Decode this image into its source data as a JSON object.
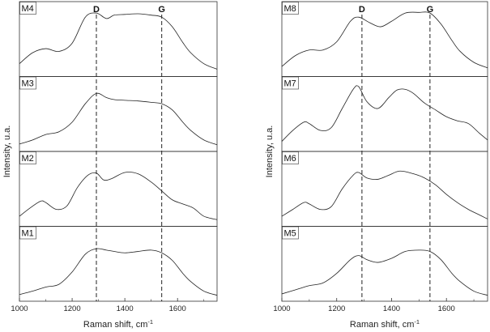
{
  "chart_data": [
    {
      "type": "line",
      "ylabel": "Intensity, u.a.",
      "xlabel": "Raman shift, cm",
      "xlabel_sup": "-1",
      "xlim": [
        1000,
        1750
      ],
      "xticks": [
        1000,
        1200,
        1400,
        1600
      ],
      "peak_lines": [
        {
          "label": "D",
          "x": 1292
        },
        {
          "label": "G",
          "x": 1540
        }
      ],
      "panels": [
        {
          "label": "M4",
          "x": [
            1000,
            1050,
            1100,
            1150,
            1200,
            1250,
            1292,
            1330,
            1360,
            1400,
            1450,
            1500,
            1540,
            1580,
            1620,
            1650,
            1700,
            1750
          ],
          "y": [
            0.14,
            0.3,
            0.36,
            0.32,
            0.44,
            0.82,
            0.88,
            0.8,
            0.85,
            0.86,
            0.87,
            0.85,
            0.82,
            0.68,
            0.45,
            0.3,
            0.14,
            0.06
          ]
        },
        {
          "label": "M3",
          "x": [
            1000,
            1050,
            1100,
            1150,
            1200,
            1250,
            1292,
            1330,
            1360,
            1400,
            1450,
            1500,
            1540,
            1580,
            1620,
            1650,
            1700,
            1750
          ],
          "y": [
            0.06,
            0.12,
            0.2,
            0.24,
            0.38,
            0.65,
            0.8,
            0.74,
            0.71,
            0.7,
            0.69,
            0.67,
            0.65,
            0.56,
            0.38,
            0.26,
            0.12,
            0.05
          ]
        },
        {
          "label": "M2",
          "x": [
            1000,
            1040,
            1080,
            1100,
            1140,
            1180,
            1220,
            1260,
            1292,
            1320,
            1350,
            1400,
            1450,
            1500,
            1540,
            1580,
            1620,
            1660,
            1700,
            1750
          ],
          "y": [
            0.1,
            0.22,
            0.32,
            0.3,
            0.2,
            0.25,
            0.52,
            0.7,
            0.73,
            0.63,
            0.65,
            0.74,
            0.72,
            0.6,
            0.47,
            0.34,
            0.28,
            0.22,
            0.1,
            0.05
          ]
        },
        {
          "label": "M1",
          "x": [
            1000,
            1050,
            1100,
            1150,
            1200,
            1250,
            1292,
            1330,
            1360,
            1400,
            1450,
            1500,
            1540,
            1580,
            1620,
            1650,
            1700,
            1750
          ],
          "y": [
            0.05,
            0.1,
            0.16,
            0.2,
            0.38,
            0.64,
            0.72,
            0.7,
            0.68,
            0.66,
            0.68,
            0.7,
            0.66,
            0.55,
            0.36,
            0.24,
            0.1,
            0.04
          ]
        },
        {
          "label": "M8",
          "x": [
            1000,
            1050,
            1100,
            1150,
            1200,
            1250,
            1280,
            1320,
            1360,
            1400,
            1450,
            1500,
            1540,
            1580,
            1620,
            1650,
            1700,
            1750
          ],
          "y": [
            0.1,
            0.26,
            0.34,
            0.34,
            0.46,
            0.76,
            0.82,
            0.74,
            0.68,
            0.76,
            0.88,
            0.89,
            0.88,
            0.72,
            0.48,
            0.32,
            0.16,
            0.08
          ]
        },
        {
          "label": "M7",
          "x": [
            1000,
            1040,
            1080,
            1100,
            1140,
            1180,
            1220,
            1260,
            1280,
            1310,
            1350,
            1390,
            1420,
            1450,
            1480,
            1520,
            1560,
            1600,
            1640,
            1680,
            1720,
            1750
          ],
          "y": [
            0.1,
            0.26,
            0.38,
            0.36,
            0.26,
            0.3,
            0.58,
            0.86,
            0.9,
            0.68,
            0.58,
            0.74,
            0.85,
            0.86,
            0.8,
            0.66,
            0.56,
            0.46,
            0.4,
            0.36,
            0.22,
            0.12
          ]
        },
        {
          "label": "M6",
          "x": [
            1000,
            1040,
            1080,
            1100,
            1140,
            1180,
            1220,
            1260,
            1280,
            1310,
            1350,
            1390,
            1430,
            1480,
            1520,
            1560,
            1600,
            1640,
            1680,
            1720,
            1750
          ],
          "y": [
            0.1,
            0.2,
            0.3,
            0.28,
            0.2,
            0.24,
            0.5,
            0.7,
            0.74,
            0.66,
            0.64,
            0.7,
            0.76,
            0.72,
            0.66,
            0.56,
            0.42,
            0.3,
            0.2,
            0.12,
            0.06
          ]
        },
        {
          "label": "M5",
          "x": [
            1000,
            1050,
            1100,
            1150,
            1200,
            1250,
            1280,
            1310,
            1350,
            1400,
            1450,
            1500,
            1540,
            1580,
            1620,
            1650,
            1700,
            1750
          ],
          "y": [
            0.06,
            0.12,
            0.18,
            0.22,
            0.36,
            0.56,
            0.62,
            0.56,
            0.52,
            0.58,
            0.68,
            0.7,
            0.68,
            0.56,
            0.36,
            0.24,
            0.1,
            0.04
          ]
        }
      ]
    }
  ]
}
